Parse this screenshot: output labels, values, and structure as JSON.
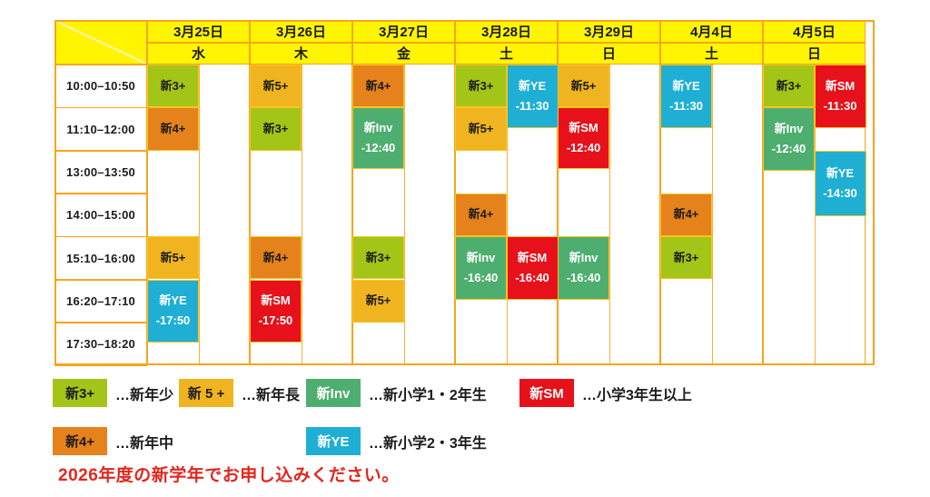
{
  "chart_data": {
    "type": "table",
    "columns": [
      {
        "date": "3月25日",
        "weekday": "水"
      },
      {
        "date": "3月26日",
        "weekday": "木"
      },
      {
        "date": "3月27日",
        "weekday": "金"
      },
      {
        "date": "3月28日",
        "weekday": "土"
      },
      {
        "date": "3月29日",
        "weekday": "日"
      },
      {
        "date": "4月4日",
        "weekday": "土"
      },
      {
        "date": "4月5日",
        "weekday": "日"
      }
    ],
    "rows": [
      "10:00–10:50",
      "11:10–12:00",
      "13:00–13:50",
      "14:00–15:00",
      "15:10–16:00",
      "16:20–17:10",
      "17:30–18:20"
    ],
    "classes": {
      "g3": {
        "label": "新3+",
        "color": "#A3C518",
        "text_color": "#1b1b1b"
      },
      "g4": {
        "label": "新4+",
        "color": "#E5821B",
        "text_color": "#1b1b1b"
      },
      "g5": {
        "label": "新5+",
        "color": "#EFB41F",
        "text_color": "#1b1b1b"
      },
      "inv": {
        "label": "新Inv",
        "color": "#4EAE6F",
        "text_color": "#ffffff"
      },
      "sm": {
        "label": "新SM",
        "color": "#E6111B",
        "text_color": "#ffffff"
      },
      "ye": {
        "label": "新YE",
        "color": "#1FAFD5",
        "text_color": "#ffffff"
      }
    },
    "entries": [
      {
        "day": 0,
        "half": 0,
        "start": 0,
        "end": 1,
        "type": "g3",
        "label": "新3+",
        "sub": ""
      },
      {
        "day": 0,
        "half": 0,
        "start": 1,
        "end": 2,
        "type": "g4",
        "label": "新4+",
        "sub": ""
      },
      {
        "day": 0,
        "half": 0,
        "start": 4,
        "end": 5,
        "type": "g5",
        "label": "新5+",
        "sub": ""
      },
      {
        "day": 0,
        "half": 0,
        "start": 5,
        "end": 6.47,
        "type": "ye",
        "label": "新YE",
        "sub": "-17:50"
      },
      {
        "day": 1,
        "half": 0,
        "start": 0,
        "end": 1,
        "type": "g5",
        "label": "新5+",
        "sub": ""
      },
      {
        "day": 1,
        "half": 0,
        "start": 1,
        "end": 2,
        "type": "g3",
        "label": "新3+",
        "sub": ""
      },
      {
        "day": 1,
        "half": 0,
        "start": 4,
        "end": 5,
        "type": "g4",
        "label": "新4+",
        "sub": ""
      },
      {
        "day": 1,
        "half": 0,
        "start": 5,
        "end": 6.47,
        "type": "sm",
        "label": "新SM",
        "sub": "-17:50"
      },
      {
        "day": 2,
        "half": 0,
        "start": 0,
        "end": 1,
        "type": "g4",
        "label": "新4+",
        "sub": ""
      },
      {
        "day": 2,
        "half": 0,
        "start": 1,
        "end": 2.44,
        "type": "inv",
        "label": "新Inv",
        "sub": "-12:40"
      },
      {
        "day": 2,
        "half": 0,
        "start": 4,
        "end": 5,
        "type": "g3",
        "label": "新3+",
        "sub": ""
      },
      {
        "day": 2,
        "half": 0,
        "start": 5,
        "end": 6,
        "type": "g5",
        "label": "新5+",
        "sub": ""
      },
      {
        "day": 3,
        "half": 0,
        "start": 0,
        "end": 1,
        "type": "g3",
        "label": "新3+",
        "sub": ""
      },
      {
        "day": 3,
        "half": 1,
        "start": 0,
        "end": 1.48,
        "type": "ye",
        "label": "新YE",
        "sub": "-11:30"
      },
      {
        "day": 3,
        "half": 0,
        "start": 1,
        "end": 2,
        "type": "g5",
        "label": "新5+",
        "sub": ""
      },
      {
        "day": 3,
        "half": 0,
        "start": 3,
        "end": 4,
        "type": "g4",
        "label": "新4+",
        "sub": ""
      },
      {
        "day": 3,
        "half": 0,
        "start": 4,
        "end": 5.48,
        "type": "inv",
        "label": "新Inv",
        "sub": "-16:40"
      },
      {
        "day": 3,
        "half": 1,
        "start": 4,
        "end": 5.48,
        "type": "sm",
        "label": "新SM",
        "sub": "-16:40"
      },
      {
        "day": 4,
        "half": 0,
        "start": 0,
        "end": 1,
        "type": "g5",
        "label": "新5+",
        "sub": ""
      },
      {
        "day": 4,
        "half": 0,
        "start": 1,
        "end": 2.44,
        "type": "sm",
        "label": "新SM",
        "sub": "-12:40"
      },
      {
        "day": 4,
        "half": 0,
        "start": 4,
        "end": 5.48,
        "type": "inv",
        "label": "新Inv",
        "sub": "-16:40"
      },
      {
        "day": 5,
        "half": 0,
        "start": 0,
        "end": 1.48,
        "type": "ye",
        "label": "新YE",
        "sub": "-11:30"
      },
      {
        "day": 5,
        "half": 0,
        "start": 3,
        "end": 4,
        "type": "g4",
        "label": "新4+",
        "sub": ""
      },
      {
        "day": 5,
        "half": 0,
        "start": 4,
        "end": 5,
        "type": "g3",
        "label": "新3+",
        "sub": ""
      },
      {
        "day": 6,
        "half": 0,
        "start": 0,
        "end": 1,
        "type": "g3",
        "label": "新3+",
        "sub": ""
      },
      {
        "day": 6,
        "half": 1,
        "start": 0,
        "end": 1.48,
        "type": "sm",
        "label": "新SM",
        "sub": "-11:30"
      },
      {
        "day": 6,
        "half": 0,
        "start": 1,
        "end": 2.47,
        "type": "inv",
        "label": "新Inv",
        "sub": "-12:40"
      },
      {
        "day": 6,
        "half": 1,
        "start": 2,
        "end": 3.53,
        "type": "ye",
        "label": "新YE",
        "sub": "-14:30"
      }
    ],
    "legend_rows": [
      [
        {
          "type": "g3",
          "swatch": "新3+",
          "desc": "…新年少"
        },
        {
          "type": "g5",
          "swatch": "新 5 +",
          "desc": "…新年長"
        },
        {
          "type": "inv",
          "swatch": "新Inv",
          "desc": "…新小学1・2年生"
        },
        {
          "type": "sm",
          "swatch": "新SM",
          "desc": "…小学3年生以上"
        }
      ],
      [
        {
          "type": "g4",
          "swatch": "新4+",
          "desc": "…新年中"
        },
        {
          "type": "ye",
          "swatch": "新YE",
          "desc": "…新小学2・3年生"
        }
      ]
    ],
    "note": "2026年度の新学年でお申し込みください。"
  },
  "colors": {
    "header_bg": "#FFF500",
    "grid_line": "#F9A41B",
    "block_border": "#FFC41E",
    "note_text": "#E3261D"
  }
}
